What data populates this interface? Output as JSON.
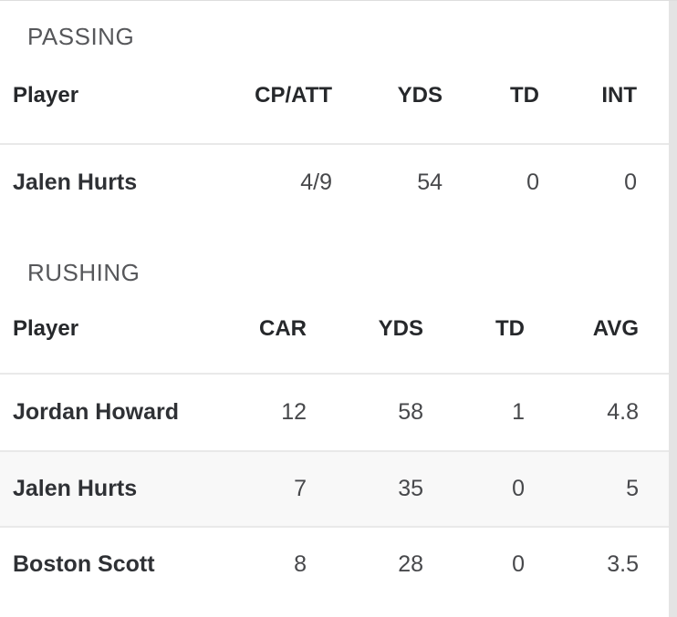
{
  "sections": [
    {
      "title": "PASSING",
      "columns": [
        "Player",
        "CP/ATT",
        "YDS",
        "TD",
        "INT"
      ],
      "rows": [
        {
          "player": "Jalen Hurts",
          "values": [
            "4/9",
            "54",
            "0",
            "0"
          ]
        }
      ]
    },
    {
      "title": "RUSHING",
      "columns": [
        "Player",
        "CAR",
        "YDS",
        "TD",
        "AVG"
      ],
      "rows": [
        {
          "player": "Jordan Howard",
          "values": [
            "12",
            "58",
            "1",
            "4.8"
          ]
        },
        {
          "player": "Jalen Hurts",
          "values": [
            "7",
            "35",
            "0",
            "5"
          ]
        },
        {
          "player": "Boston Scott",
          "values": [
            "8",
            "28",
            "0",
            "3.5"
          ]
        }
      ]
    }
  ],
  "colors": {
    "background": "#ffffff",
    "zebra_row": "#f8f8f8",
    "separator": "#e9e9e9",
    "section_title_text": "#56575a",
    "header_text": "#26282b",
    "player_name_text": "#2f3135",
    "stat_value_text": "#47484b",
    "scrollbar_track": "#e4e4e4"
  }
}
